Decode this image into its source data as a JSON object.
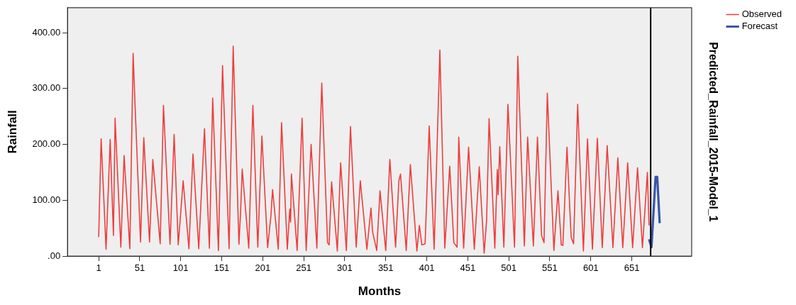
{
  "chart_data": {
    "type": "line",
    "xlabel": "Months",
    "ylabel": "Rainfall",
    "y2label": "Predicted_Rainfall_2015-Model_1",
    "xlim": [
      -37,
      724
    ],
    "xticks": [
      1,
      51,
      101,
      151,
      201,
      251,
      301,
      351,
      401,
      451,
      501,
      551,
      601,
      651
    ],
    "ylim": [
      0,
      445
    ],
    "yticks": [
      {
        "value": 0,
        "label": ".00"
      },
      {
        "value": 100,
        "label": "100.00"
      },
      {
        "value": 200,
        "label": "200.00"
      },
      {
        "value": 300,
        "label": "300.00"
      },
      {
        "value": 400,
        "label": "400.00"
      }
    ],
    "grid": false,
    "legend": "top right",
    "marker": "none",
    "line_style": "solid",
    "ref_lines": [
      {
        "axis": "x",
        "value": 674,
        "color": "#000000"
      }
    ],
    "series": [
      {
        "name": "Observed",
        "color": "#f03c3c",
        "x": [
          1,
          4,
          10,
          15,
          19,
          21,
          28,
          32,
          39,
          43,
          45,
          52,
          56,
          63,
          67,
          76,
          80,
          88,
          93,
          98,
          104,
          111,
          116,
          123,
          130,
          136,
          140,
          147,
          152,
          160,
          165,
          172,
          174,
          176,
          184,
          189,
          195,
          200,
          207,
          211,
          213,
          220,
          224,
          231,
          234,
          235,
          236,
          243,
          249,
          254,
          260,
          267,
          273,
          280,
          282,
          285,
          292,
          296,
          303,
          308,
          315,
          320,
          328,
          333,
          335,
          340,
          344,
          351,
          356,
          363,
          367,
          369,
          376,
          381,
          389,
          392,
          395,
          399,
          404,
          410,
          417,
          423,
          429,
          434,
          438,
          440,
          446,
          452,
          459,
          465,
          471,
          474,
          477,
          484,
          487,
          488,
          490,
          495,
          500,
          508,
          512,
          520,
          524,
          531,
          536,
          541,
          544,
          548,
          556,
          561,
          565,
          567,
          572,
          577,
          580,
          585,
          592,
          597,
          603,
          609,
          615,
          621,
          628,
          634,
          640,
          646,
          652,
          658,
          664,
          670,
          672
        ],
        "values": [
          34,
          210,
          12,
          209,
          37,
          247,
          16,
          180,
          13,
          363,
          284,
          25,
          212,
          25,
          173,
          22,
          270,
          21,
          218,
          20,
          135,
          13,
          183,
          13,
          228,
          14,
          283,
          10,
          341,
          13,
          376,
          21,
          78,
          156,
          14,
          270,
          16,
          215,
          15,
          72,
          119,
          12,
          239,
          12,
          84,
          61,
          147,
          10,
          247,
          10,
          200,
          14,
          310,
          24,
          20,
          133,
          9,
          167,
          10,
          232,
          16,
          135,
          12,
          86,
          43,
          10,
          117,
          10,
          173,
          16,
          135,
          147,
          10,
          164,
          9,
          55,
          20,
          22,
          233,
          12,
          369,
          14,
          161,
          24,
          16,
          213,
          14,
          195,
          12,
          160,
          5,
          65,
          246,
          14,
          155,
          110,
          196,
          16,
          272,
          16,
          358,
          18,
          213,
          18,
          213,
          37,
          24,
          292,
          10,
          117,
          20,
          19,
          195,
          34,
          22,
          272,
          9,
          210,
          12,
          211,
          15,
          198,
          15,
          176,
          15,
          167,
          15,
          158,
          15,
          150,
          55
        ]
      },
      {
        "name": "Forecast",
        "color": "#3a55a8",
        "x": [
          672,
          675,
          680,
          682,
          685
        ],
        "values": [
          30,
          16,
          142,
          142,
          59
        ]
      }
    ]
  }
}
